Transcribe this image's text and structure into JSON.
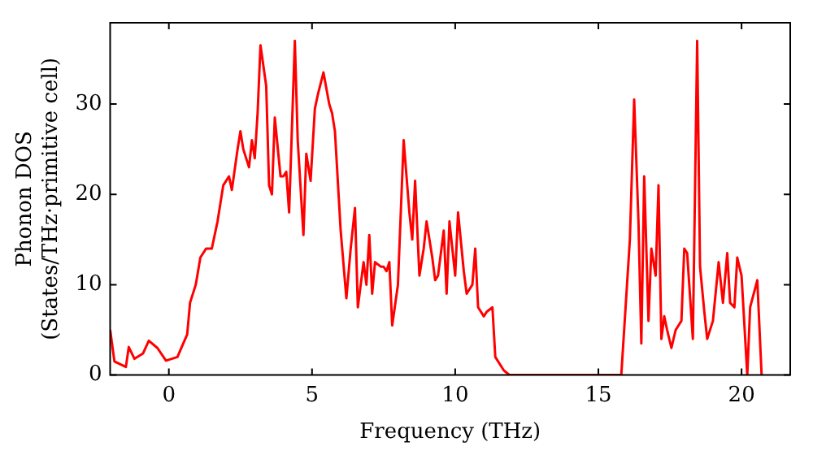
{
  "chart_data": {
    "type": "line",
    "xlabel": "Frequency (THz)",
    "ylabel": "Phonon DOS\n(States/THz·primitive cell)",
    "xlim": [
      -2.05,
      21.7
    ],
    "ylim": [
      0,
      39
    ],
    "xticks": [
      0,
      5,
      10,
      15,
      20
    ],
    "yticks": [
      0,
      10,
      20,
      30
    ],
    "grid": false,
    "legend": false,
    "marker": "none",
    "line_style": "solid",
    "x": [
      -2.05,
      -1.9,
      -1.5,
      -1.4,
      -1.2,
      -0.9,
      -0.7,
      -0.4,
      -0.1,
      0.3,
      0.64,
      0.74,
      0.94,
      1.1,
      1.3,
      1.5,
      1.7,
      1.9,
      2.1,
      2.2,
      2.4,
      2.5,
      2.6,
      2.8,
      2.9,
      3.0,
      3.1,
      3.2,
      3.4,
      3.5,
      3.6,
      3.7,
      3.9,
      4.0,
      4.1,
      4.2,
      4.4,
      4.5,
      4.7,
      4.8,
      4.95,
      5.1,
      5.2,
      5.4,
      5.6,
      5.7,
      5.8,
      6.0,
      6.2,
      6.35,
      6.5,
      6.6,
      6.8,
      6.9,
      7.0,
      7.1,
      7.2,
      7.4,
      7.5,
      7.6,
      7.7,
      7.8,
      8.0,
      8.2,
      8.4,
      8.5,
      8.6,
      8.75,
      8.9,
      9.0,
      9.2,
      9.3,
      9.4,
      9.6,
      9.7,
      9.8,
      10.0,
      10.1,
      10.3,
      10.4,
      10.6,
      10.7,
      10.8,
      11.0,
      11.1,
      11.3,
      11.4,
      11.7,
      11.9,
      15.8,
      16.0,
      16.1,
      16.25,
      16.4,
      16.5,
      16.6,
      16.75,
      16.85,
      17.0,
      17.1,
      17.2,
      17.3,
      17.4,
      17.55,
      17.7,
      17.8,
      17.9,
      18.0,
      18.1,
      18.3,
      18.45,
      18.55,
      18.7,
      18.8,
      19.0,
      19.2,
      19.35,
      19.5,
      19.6,
      19.75,
      19.85,
      20.0,
      20.2,
      20.3,
      20.55,
      20.7
    ],
    "series": [
      {
        "color": "#ff0000",
        "values": [
          5,
          1.5,
          0.9,
          3.1,
          1.8,
          2.4,
          3.8,
          3,
          1.6,
          2,
          4.5,
          8,
          10,
          13,
          14,
          14,
          17,
          21,
          22,
          20.5,
          25,
          27,
          25,
          23,
          26,
          24,
          29,
          36.5,
          32,
          21,
          20,
          28.5,
          22,
          22,
          22.5,
          18,
          37,
          26,
          15.5,
          24.5,
          21.5,
          29.5,
          31,
          33.5,
          30,
          29,
          27,
          16,
          8.5,
          14,
          18.5,
          7.5,
          12.5,
          10,
          15.5,
          9,
          12.5,
          12,
          12,
          11.5,
          12.5,
          5.5,
          10,
          26,
          18,
          15,
          21.5,
          11,
          14,
          17,
          13,
          10.5,
          11,
          16,
          9,
          17,
          11,
          18,
          11.5,
          9,
          10,
          14,
          7.5,
          6.5,
          7,
          7.5,
          2,
          0.5,
          0,
          0,
          10,
          15,
          30.5,
          17,
          3.5,
          22,
          6,
          14,
          11,
          21,
          4,
          6.5,
          5,
          3,
          5,
          5.5,
          6,
          14,
          13.5,
          4,
          37,
          12,
          7,
          4,
          6,
          12.5,
          8,
          13.5,
          8,
          7.5,
          13,
          11,
          0,
          7.5,
          10.5,
          0
        ]
      }
    ]
  }
}
